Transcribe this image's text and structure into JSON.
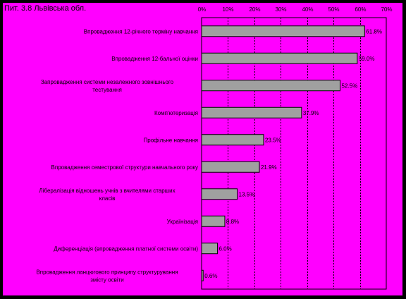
{
  "chart_data": {
    "type": "bar",
    "orientation": "horizontal",
    "title": "Пит. 3.8 Львівська обл.",
    "xlim": [
      0,
      70
    ],
    "x_ticks": [
      "0%",
      "10%",
      "20%",
      "30%",
      "40%",
      "50%",
      "60%",
      "70%"
    ],
    "x_tick_values": [
      0,
      10,
      20,
      30,
      40,
      50,
      60,
      70
    ],
    "grid": true,
    "categories": [
      [
        "Впровадження 12-річного терміну навчання"
      ],
      [
        "Впровадження 12-бальної оцінки"
      ],
      [
        "Запровадження системи незалежного зовнішнього",
        "тестування"
      ],
      [
        "Комп'ютеризація"
      ],
      [
        "Профільне навчання"
      ],
      [
        "Впровадження семестрової структури навчального року"
      ],
      [
        "Лібералізація відношень учнів з вчителями старших",
        "класів"
      ],
      [
        "Українізація"
      ],
      [
        "Диференціація (впровадження платної системи освіти)"
      ],
      [
        "Впровадження ланцюгового принципу структурування",
        "змісту освіти"
      ]
    ],
    "values": [
      61.8,
      59.0,
      52.5,
      37.9,
      23.5,
      21.9,
      13.5,
      8.8,
      6.0,
      0.6
    ],
    "value_labels": [
      "61.8%",
      "59.0%",
      "52.5%",
      "37.9%",
      "23.5%",
      "21.9%",
      "13.5%",
      "8.8%",
      "6.0%",
      "0.6%"
    ],
    "colors": {
      "background": "#FF00FF",
      "frame": "#000000",
      "bar_fill": "#A0A0A0",
      "bar_stroke": "#000000",
      "grid": "#000000"
    }
  }
}
